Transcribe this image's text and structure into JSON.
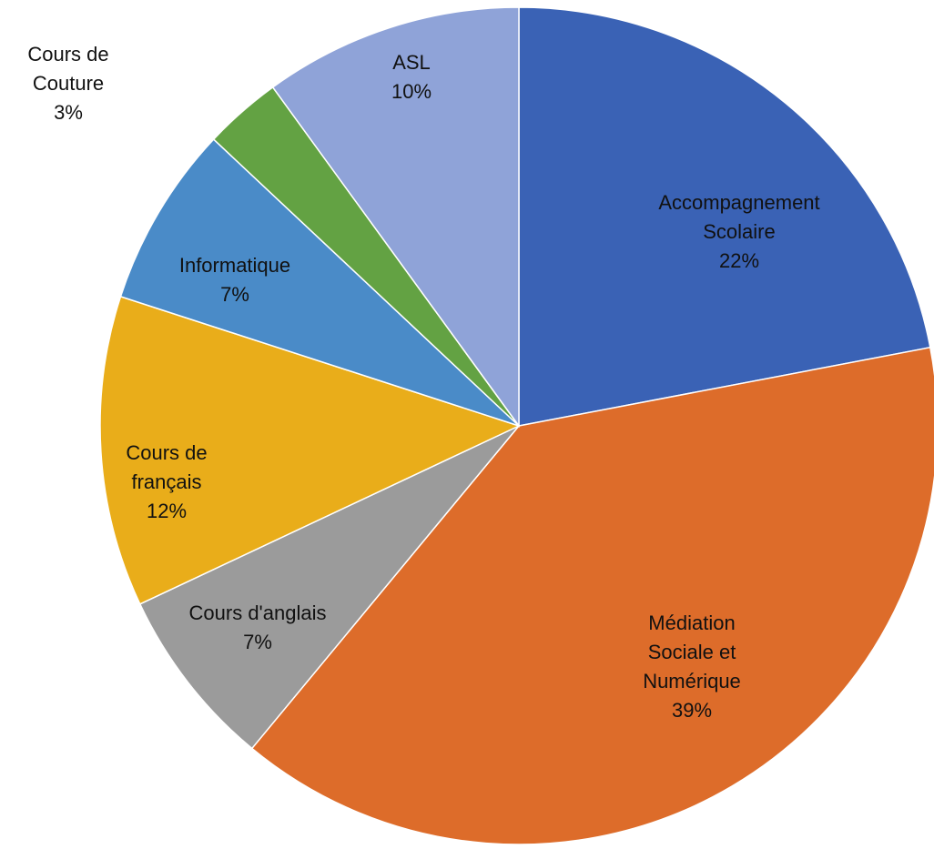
{
  "chart_data": {
    "type": "pie",
    "categories": [
      "Accompagnement Scolaire",
      "Médiation Sociale et Numérique",
      "Cours d'anglais",
      "Cours de français",
      "Informatique",
      "Cours de Couture",
      "ASL"
    ],
    "values": [
      22,
      39,
      7,
      12,
      7,
      3,
      10
    ],
    "value_labels": [
      "22%",
      "39%",
      "7%",
      "12%",
      "7%",
      "3%",
      "10%"
    ],
    "colors": [
      "#3a62b5",
      "#dd6c2a",
      "#9b9b9b",
      "#e9ad1a",
      "#4a8bc8",
      "#63a243",
      "#8fa3d8"
    ]
  }
}
